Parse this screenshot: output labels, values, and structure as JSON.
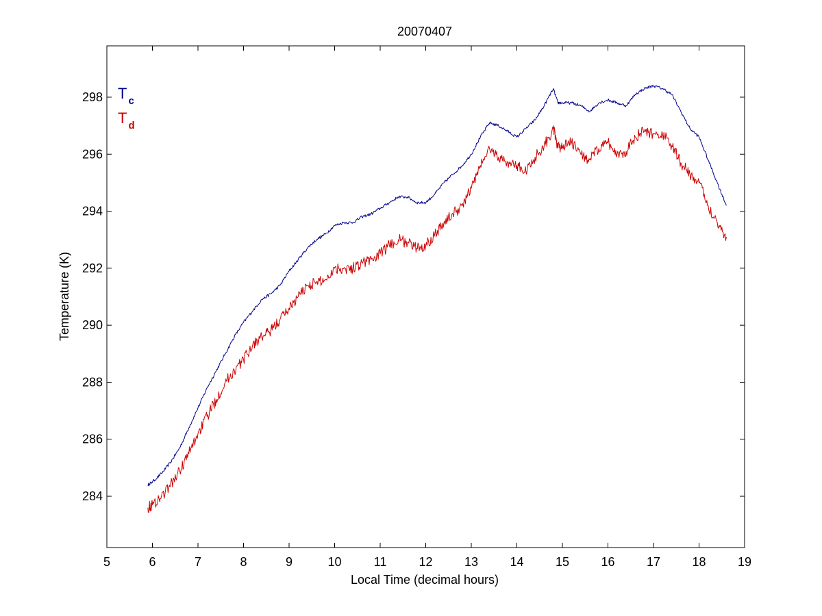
{
  "chart_data": {
    "type": "line",
    "title": "20070407",
    "xlabel": "Local Time (decimal hours)",
    "ylabel": "Temperature (K)",
    "xlim": [
      5,
      19
    ],
    "ylim": [
      282.2,
      299.8
    ],
    "xticks": [
      5,
      6,
      7,
      8,
      9,
      10,
      11,
      12,
      13,
      14,
      15,
      16,
      17,
      18,
      19
    ],
    "yticks": [
      284,
      286,
      288,
      290,
      292,
      294,
      296,
      298
    ],
    "grid": false,
    "legend_position": "top-left",
    "series": [
      {
        "name": "T",
        "subscript": "c",
        "color": "#00008b",
        "points": [
          [
            5.9,
            284.4
          ],
          [
            6.0,
            284.5
          ],
          [
            6.2,
            284.8
          ],
          [
            6.4,
            285.2
          ],
          [
            6.6,
            285.7
          ],
          [
            6.8,
            286.4
          ],
          [
            7.0,
            287.1
          ],
          [
            7.2,
            287.8
          ],
          [
            7.4,
            288.4
          ],
          [
            7.6,
            289.0
          ],
          [
            7.8,
            289.6
          ],
          [
            8.0,
            290.1
          ],
          [
            8.2,
            290.5
          ],
          [
            8.4,
            290.9
          ],
          [
            8.6,
            291.1
          ],
          [
            8.8,
            291.4
          ],
          [
            9.0,
            291.9
          ],
          [
            9.2,
            292.3
          ],
          [
            9.4,
            292.7
          ],
          [
            9.6,
            293.0
          ],
          [
            9.8,
            293.2
          ],
          [
            10.0,
            293.5
          ],
          [
            10.2,
            293.6
          ],
          [
            10.4,
            293.6
          ],
          [
            10.6,
            293.8
          ],
          [
            10.8,
            293.9
          ],
          [
            11.0,
            294.1
          ],
          [
            11.2,
            294.3
          ],
          [
            11.4,
            294.5
          ],
          [
            11.6,
            294.5
          ],
          [
            11.8,
            294.3
          ],
          [
            12.0,
            294.3
          ],
          [
            12.2,
            294.6
          ],
          [
            12.4,
            295.0
          ],
          [
            12.6,
            295.3
          ],
          [
            12.8,
            295.6
          ],
          [
            13.0,
            296.0
          ],
          [
            13.2,
            296.6
          ],
          [
            13.4,
            297.1
          ],
          [
            13.6,
            297.0
          ],
          [
            13.8,
            296.8
          ],
          [
            14.0,
            296.6
          ],
          [
            14.2,
            296.9
          ],
          [
            14.4,
            297.2
          ],
          [
            14.6,
            297.7
          ],
          [
            14.8,
            298.3
          ],
          [
            14.9,
            297.8
          ],
          [
            15.0,
            297.8
          ],
          [
            15.2,
            297.8
          ],
          [
            15.4,
            297.7
          ],
          [
            15.6,
            297.5
          ],
          [
            15.8,
            297.8
          ],
          [
            16.0,
            297.9
          ],
          [
            16.2,
            297.8
          ],
          [
            16.4,
            297.7
          ],
          [
            16.6,
            298.1
          ],
          [
            16.8,
            298.3
          ],
          [
            17.0,
            298.4
          ],
          [
            17.2,
            298.3
          ],
          [
            17.4,
            298.1
          ],
          [
            17.6,
            297.5
          ],
          [
            17.8,
            296.9
          ],
          [
            18.0,
            296.6
          ],
          [
            18.2,
            295.8
          ],
          [
            18.4,
            295.0
          ],
          [
            18.6,
            294.2
          ]
        ]
      },
      {
        "name": "T",
        "subscript": "d",
        "color": "#cc0000",
        "points": [
          [
            5.9,
            283.6
          ],
          [
            6.0,
            283.7
          ],
          [
            6.2,
            284.0
          ],
          [
            6.4,
            284.4
          ],
          [
            6.6,
            284.9
          ],
          [
            6.8,
            285.5
          ],
          [
            7.0,
            286.2
          ],
          [
            7.2,
            286.8
          ],
          [
            7.4,
            287.4
          ],
          [
            7.6,
            288.0
          ],
          [
            7.8,
            288.4
          ],
          [
            8.0,
            288.8
          ],
          [
            8.2,
            289.3
          ],
          [
            8.4,
            289.6
          ],
          [
            8.6,
            289.8
          ],
          [
            8.8,
            290.2
          ],
          [
            9.0,
            290.6
          ],
          [
            9.2,
            291.0
          ],
          [
            9.4,
            291.4
          ],
          [
            9.6,
            291.5
          ],
          [
            9.8,
            291.6
          ],
          [
            10.0,
            292.0
          ],
          [
            10.2,
            292.0
          ],
          [
            10.4,
            292.0
          ],
          [
            10.6,
            292.2
          ],
          [
            10.8,
            292.3
          ],
          [
            11.0,
            292.5
          ],
          [
            11.2,
            292.8
          ],
          [
            11.4,
            293.0
          ],
          [
            11.6,
            292.9
          ],
          [
            11.8,
            292.7
          ],
          [
            12.0,
            292.8
          ],
          [
            12.2,
            293.2
          ],
          [
            12.4,
            293.6
          ],
          [
            12.6,
            293.9
          ],
          [
            12.8,
            294.2
          ],
          [
            13.0,
            294.8
          ],
          [
            13.2,
            295.6
          ],
          [
            13.4,
            296.2
          ],
          [
            13.6,
            295.9
          ],
          [
            13.8,
            295.7
          ],
          [
            14.0,
            295.6
          ],
          [
            14.2,
            295.4
          ],
          [
            14.4,
            295.9
          ],
          [
            14.6,
            296.3
          ],
          [
            14.8,
            296.9
          ],
          [
            14.9,
            296.2
          ],
          [
            15.0,
            296.3
          ],
          [
            15.2,
            296.4
          ],
          [
            15.4,
            296.0
          ],
          [
            15.6,
            295.8
          ],
          [
            15.8,
            296.2
          ],
          [
            16.0,
            296.4
          ],
          [
            16.2,
            296.0
          ],
          [
            16.4,
            296.1
          ],
          [
            16.6,
            296.6
          ],
          [
            16.8,
            296.8
          ],
          [
            17.0,
            296.7
          ],
          [
            17.2,
            296.7
          ],
          [
            17.4,
            296.3
          ],
          [
            17.6,
            295.7
          ],
          [
            17.8,
            295.3
          ],
          [
            18.0,
            295.0
          ],
          [
            18.2,
            294.2
          ],
          [
            18.4,
            293.6
          ],
          [
            18.6,
            293.1
          ]
        ]
      }
    ]
  }
}
